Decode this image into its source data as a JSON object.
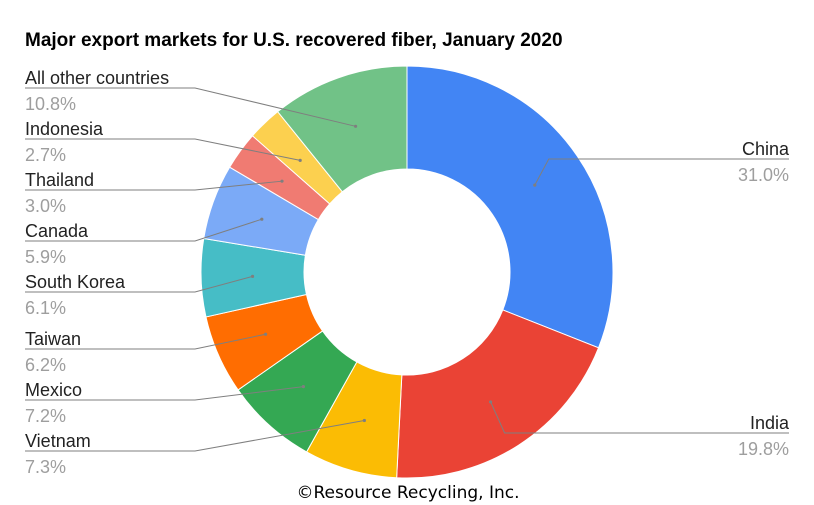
{
  "chart_data": {
    "type": "pie",
    "title": "Major export markets for U.S. recovered fiber, January 2020",
    "credit": "©Resource Recycling, Inc.",
    "slices": [
      {
        "label": "China",
        "value": 31.0,
        "display": "31.0%",
        "color": "#4285f4"
      },
      {
        "label": "India",
        "value": 19.8,
        "display": "19.8%",
        "color": "#ea4335"
      },
      {
        "label": "Vietnam",
        "value": 7.3,
        "display": "7.3%",
        "color": "#fbbc04"
      },
      {
        "label": "Mexico",
        "value": 7.2,
        "display": "7.2%",
        "color": "#34a853"
      },
      {
        "label": "Taiwan",
        "value": 6.2,
        "display": "6.2%",
        "color": "#ff6d01"
      },
      {
        "label": "South Korea",
        "value": 6.1,
        "display": "6.1%",
        "color": "#46bdc6"
      },
      {
        "label": "Canada",
        "value": 5.9,
        "display": "5.9%",
        "color": "#7baaf7"
      },
      {
        "label": "Thailand",
        "value": 3.0,
        "display": "3.0%",
        "color": "#f07b72"
      },
      {
        "label": "Indonesia",
        "value": 2.7,
        "display": "2.7%",
        "color": "#fcd04f"
      },
      {
        "label": "All other countries",
        "value": 10.8,
        "display": "10.8%",
        "color": "#71c287"
      }
    ],
    "donut": true,
    "legend": "none"
  }
}
